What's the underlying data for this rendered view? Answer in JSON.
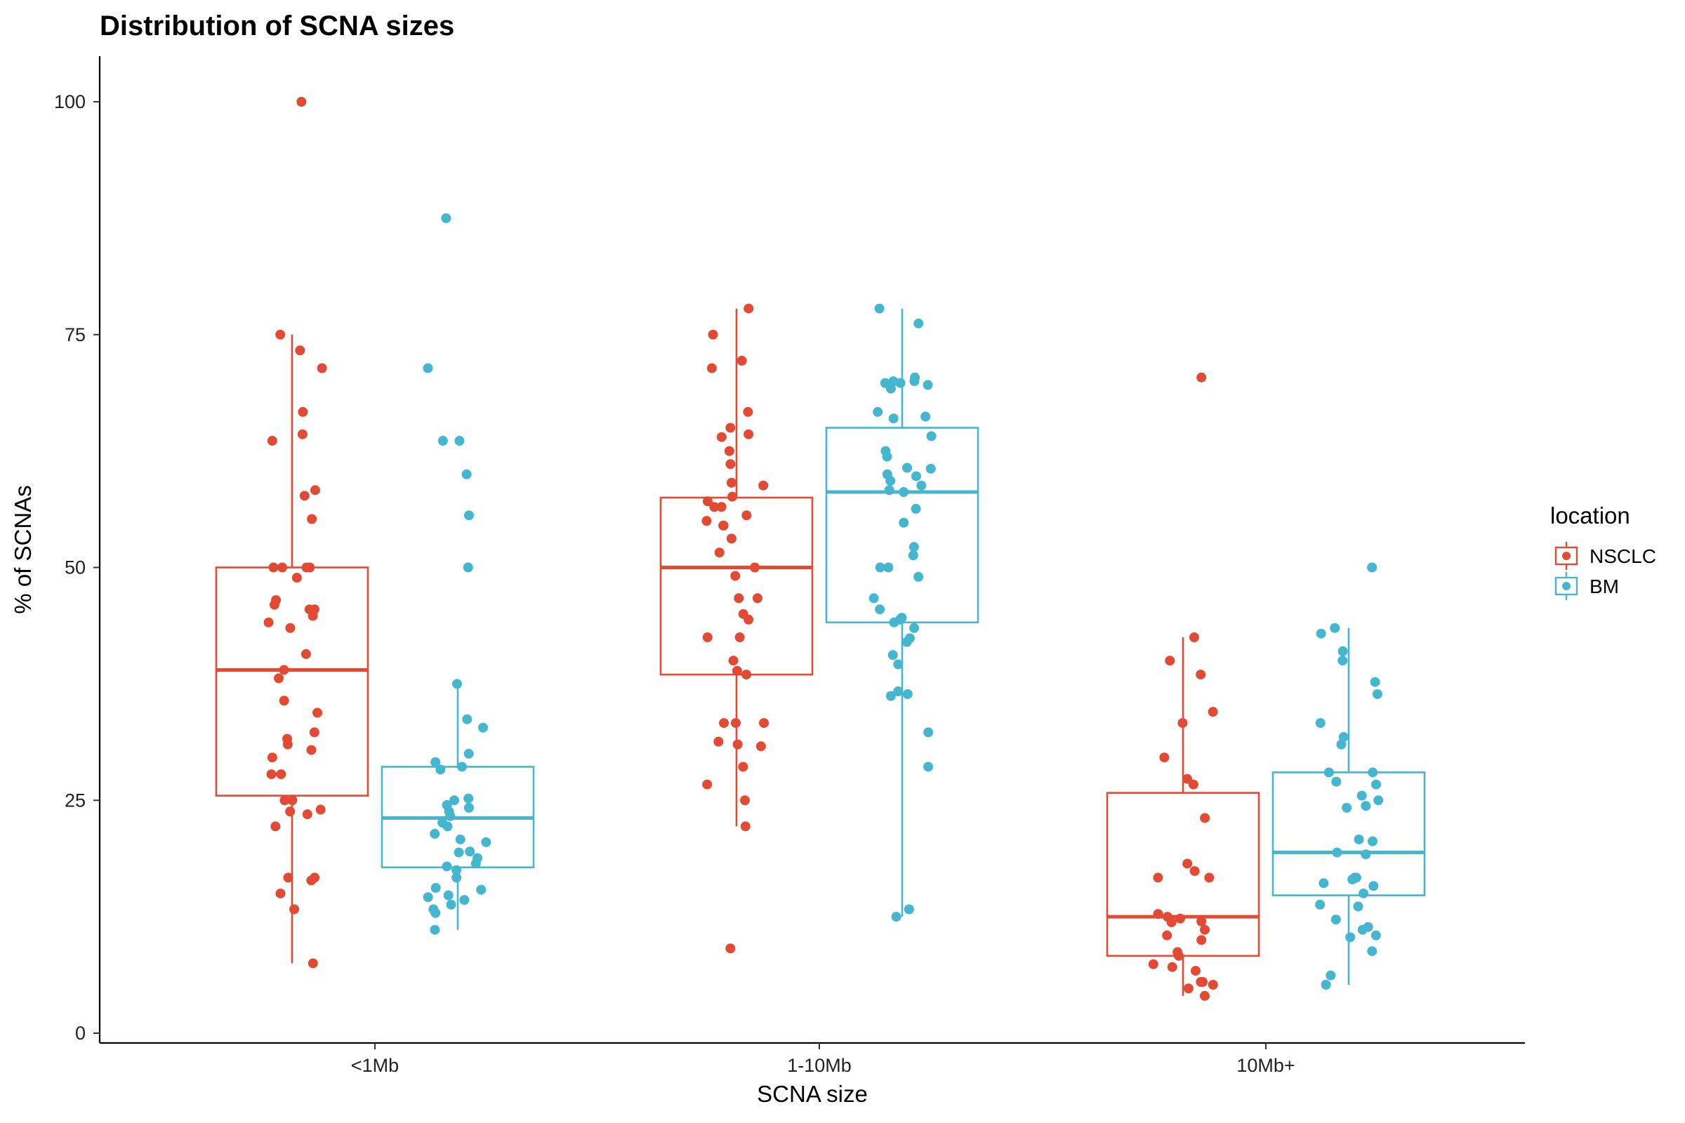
{
  "chart_data": {
    "type": "boxplot",
    "title": "Distribution of SCNA sizes",
    "xlabel": "SCNA size",
    "ylabel": "% of SCNAs",
    "categories": [
      "<1Mb",
      "1-10Mb",
      "10Mb+"
    ],
    "ylim": [
      0,
      100
    ],
    "yticks": [
      0,
      25,
      50,
      75,
      100
    ],
    "grid": false,
    "legend": {
      "title": "location",
      "position": "right"
    },
    "series": [
      {
        "name": "NSCLC",
        "color": "#E24A33",
        "boxes": [
          {
            "category": "<1Mb",
            "whisker_low": 7.5,
            "q1": 25.5,
            "median": 39,
            "q3": 50,
            "whisker_high": 75
          },
          {
            "category": "1-10Mb",
            "whisker_low": 22.2,
            "q1": 38.5,
            "median": 50,
            "q3": 57.5,
            "whisker_high": 77.8
          },
          {
            "category": "10Mb+",
            "whisker_low": 4,
            "q1": 8.3,
            "median": 12.5,
            "q3": 25.8,
            "whisker_high": 42.5
          }
        ],
        "points": [
          [
            100,
            75,
            73.3,
            71.4,
            66.7,
            64.3,
            63.6,
            58.3,
            57.7,
            55.2,
            50,
            50,
            50,
            50,
            48.9,
            46.5,
            46,
            45.5,
            45.5,
            44.8,
            44.1,
            43.5,
            40.7,
            39,
            38.1,
            35.7,
            34.4,
            32.3,
            31.6,
            31,
            30.4,
            29.6,
            27.8,
            27.8,
            25,
            25,
            24,
            23.8,
            23.5,
            22.2,
            16.7,
            16.7,
            16.4,
            15,
            13.3,
            7.5
          ],
          [
            77.8,
            75,
            72.2,
            71.4,
            66.7,
            65,
            64.3,
            64,
            62.5,
            61.1,
            59.1,
            58.8,
            57.6,
            57.1,
            56.5,
            56.5,
            55.6,
            55,
            54.5,
            54.5,
            53.1,
            51.6,
            50,
            49.1,
            46.7,
            46.7,
            45,
            44.4,
            42.5,
            42.5,
            40,
            38.9,
            38.5,
            33.3,
            33.3,
            33.3,
            31.3,
            31,
            30.8,
            28.6,
            26.7,
            25,
            22.2,
            9.1
          ],
          [
            70.4,
            42.5,
            40,
            38.5,
            34.5,
            33.3,
            29.6,
            27.3,
            26.7,
            23.1,
            18.2,
            17.4,
            16.7,
            16.7,
            12.8,
            12.5,
            12.3,
            12,
            11.9,
            11.1,
            10.5,
            10,
            8.7,
            8.3,
            7.4,
            7.1,
            6.7,
            5.5,
            5.5,
            5.2,
            4.8,
            4
          ]
        ]
      },
      {
        "name": "BM",
        "color": "#45B6D0",
        "boxes": [
          {
            "category": "<1Mb",
            "whisker_low": 11.1,
            "q1": 17.8,
            "median": 23.1,
            "q3": 28.6,
            "whisker_high": 37.5
          },
          {
            "category": "1-10Mb",
            "whisker_low": 12.5,
            "q1": 44.1,
            "median": 58.1,
            "q3": 65,
            "whisker_high": 77.8
          },
          {
            "category": "10Mb+",
            "whisker_low": 5.2,
            "q1": 14.8,
            "median": 19.4,
            "q3": 28,
            "whisker_high": 43.5
          }
        ],
        "points": [
          [
            87.5,
            71.4,
            63.6,
            63.6,
            60,
            55.6,
            50,
            37.5,
            33.7,
            32.8,
            30,
            29.1,
            28.6,
            28.3,
            25.2,
            25,
            24.5,
            24.2,
            23.8,
            23.3,
            22.6,
            22.2,
            21.4,
            20.8,
            20.5,
            19.5,
            19.4,
            18.8,
            18.2,
            17.9,
            17.5,
            16.7,
            15.6,
            15.4,
            14.8,
            14.6,
            14.3,
            13.8,
            13.3,
            12.9,
            11.1
          ],
          [
            77.8,
            76.2,
            70.4,
            70,
            70,
            69.8,
            69.8,
            69.6,
            69.2,
            66.7,
            66.2,
            66,
            64.1,
            62.5,
            61.9,
            60.7,
            60.6,
            60,
            59.8,
            59.3,
            58.8,
            58.3,
            58.1,
            56.3,
            54.8,
            52.2,
            51.3,
            50,
            50,
            49,
            46.7,
            45.5,
            44.6,
            44.4,
            44.1,
            43.5,
            42.4,
            42,
            40.6,
            39.6,
            36.7,
            36.4,
            36.2,
            32.3,
            28.6,
            13.3,
            12.5
          ],
          [
            50,
            43.5,
            42.9,
            41,
            40,
            37.7,
            36.4,
            33.3,
            31.8,
            31,
            28,
            28,
            27,
            26.7,
            25.5,
            25,
            24.4,
            24.2,
            20.8,
            20.6,
            19.4,
            19.2,
            16.7,
            16.7,
            16.5,
            16.1,
            15.8,
            15,
            13.8,
            13.6,
            12.2,
            11.4,
            11.1,
            10.5,
            10.3,
            8.8,
            6.2,
            5.2
          ]
        ]
      }
    ]
  }
}
